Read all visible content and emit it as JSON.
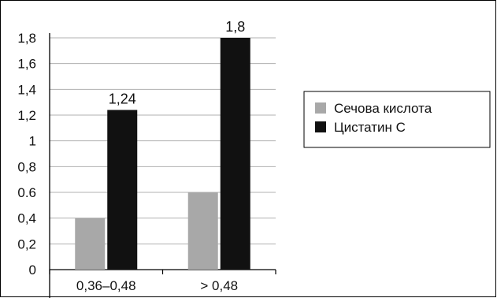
{
  "chart_data": {
    "type": "bar",
    "categories": [
      "0,36–0,48",
      "> 0,48"
    ],
    "series": [
      {
        "name": "Сечова кислота",
        "values": [
          0.4,
          0.6
        ],
        "color": "#a8a8a8"
      },
      {
        "name": "Цистатин С",
        "values": [
          1.24,
          1.8
        ],
        "color": "#111111"
      }
    ],
    "data_labels": {
      "Цистатин С": [
        "1,24",
        "1,8"
      ]
    },
    "ylim": [
      0,
      1.8
    ],
    "yticks": [
      {
        "value": 0,
        "label": "0"
      },
      {
        "value": 0.2,
        "label": "0,2"
      },
      {
        "value": 0.4,
        "label": "0,4"
      },
      {
        "value": 0.6,
        "label": "0.6"
      },
      {
        "value": 0.8,
        "label": "0,8"
      },
      {
        "value": 1.0,
        "label": "1"
      },
      {
        "value": 1.2,
        "label": "1,2"
      },
      {
        "value": 1.4,
        "label": "1,4"
      },
      {
        "value": 1.6,
        "label": "1,6"
      },
      {
        "value": 1.8,
        "label": "1,8"
      }
    ],
    "grid": true,
    "legend_position": "right",
    "title": "",
    "xlabel": "",
    "ylabel": ""
  }
}
